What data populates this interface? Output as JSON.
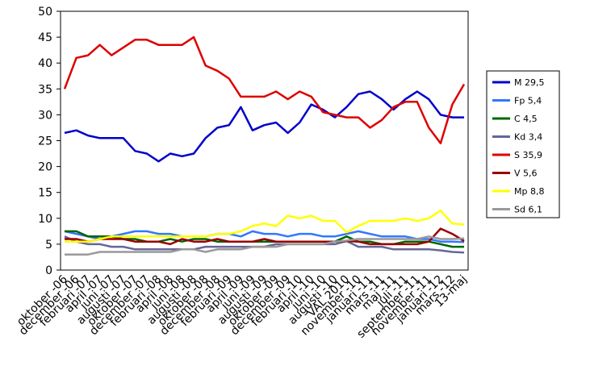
{
  "chart_data": {
    "type": "line",
    "categories": [
      "oktober -06",
      "december -06",
      "februari -07",
      "april -07",
      "juni -07",
      "augusti -07",
      "oktober -07",
      "december -07",
      "februari -08",
      "april -08",
      "juni -08",
      "augusti -08",
      "oktober -08",
      "december -08",
      "februari -09",
      "april -09",
      "juni -09",
      "augusti -09",
      "oktober -09",
      "december -09",
      "februari -10",
      "april -10",
      "juni -10",
      "augusti -10",
      "VAL 2010",
      "november -10",
      "januari -11",
      "mars -11",
      "maj -11",
      "juli -11",
      "september -11",
      "november -11",
      "januari -12",
      "mars -12",
      "13-maj"
    ],
    "series": [
      {
        "name": "M 29,5",
        "color": "#0000cc",
        "values": [
          26.5,
          27,
          26,
          25.5,
          25.5,
          25.5,
          23,
          22.5,
          21,
          22.5,
          22,
          22.5,
          25.5,
          27.5,
          28,
          31.5,
          27,
          28,
          28.5,
          26.5,
          28.5,
          32,
          31,
          29.5,
          31.5,
          34,
          34.5,
          33,
          31,
          33,
          34.5,
          33,
          30,
          29.5,
          29.5
        ]
      },
      {
        "name": "Fp 5,4",
        "color": "#3377ff",
        "values": [
          7.5,
          7,
          6.5,
          6,
          6.5,
          7,
          7.5,
          7.5,
          7,
          7,
          6.5,
          6.5,
          6.5,
          7,
          7,
          6.5,
          7.5,
          7,
          7,
          6.5,
          7,
          7,
          6.5,
          6.5,
          7,
          7.5,
          7,
          6.5,
          6.5,
          6.5,
          6,
          6,
          5.5,
          5.5,
          5.4
        ]
      },
      {
        "name": "C 4,5",
        "color": "#006600",
        "values": [
          7.5,
          7.5,
          6.5,
          6.5,
          6.5,
          6,
          6,
          5.5,
          5.5,
          6,
          5.5,
          6,
          6,
          5.5,
          5.5,
          5.5,
          5.5,
          5.5,
          5.5,
          5.5,
          5.5,
          5.5,
          5.5,
          5.5,
          6.5,
          5.5,
          5.5,
          5,
          5,
          5.5,
          5.5,
          5.5,
          5,
          4.5,
          4.5
        ]
      },
      {
        "name": "Kd 3,4",
        "color": "#666699",
        "values": [
          6.5,
          5.5,
          5,
          5,
          4.5,
          4.5,
          4,
          4,
          4,
          4,
          4,
          4,
          4.5,
          4.5,
          4.5,
          4.5,
          4.5,
          4.5,
          5,
          5,
          5,
          5,
          5,
          5,
          5.6,
          4.5,
          4.5,
          4.5,
          4,
          4,
          4,
          4,
          3.8,
          3.5,
          3.4
        ]
      },
      {
        "name": "S 35,9",
        "color": "#dd0000",
        "values": [
          35,
          41,
          41.5,
          43.5,
          41.5,
          43,
          44.5,
          44.5,
          43.5,
          43.5,
          43.5,
          45,
          39.5,
          38.5,
          37,
          33.5,
          33.5,
          33.5,
          34.5,
          33,
          34.5,
          33.5,
          30.5,
          30,
          29.5,
          29.5,
          27.5,
          29,
          31.5,
          32.5,
          32.5,
          27.5,
          24.5,
          32,
          35.9
        ]
      },
      {
        "name": "V 5,6",
        "color": "#990000",
        "values": [
          6,
          6,
          5.5,
          6,
          6,
          6,
          5.5,
          5.5,
          5.5,
          5,
          6,
          5.5,
          5.5,
          6,
          5.5,
          5.5,
          5.5,
          6,
          5.5,
          5.5,
          5.5,
          5.5,
          5.5,
          5.5,
          5.6,
          5.5,
          5,
          5,
          5,
          5,
          5,
          5.5,
          8,
          7,
          5.6
        ]
      },
      {
        "name": "Mp 8,8",
        "color": "#ffff00",
        "values": [
          5.5,
          5.5,
          5.5,
          6,
          6.5,
          6.5,
          6.5,
          6.5,
          6.5,
          6.5,
          6.5,
          6.5,
          6.5,
          7,
          7,
          7.5,
          8.5,
          9,
          8.5,
          10.5,
          10,
          10.5,
          9.5,
          9.5,
          7.3,
          8.5,
          9.5,
          9.5,
          9.5,
          10,
          9.5,
          10,
          11.5,
          9,
          8.8
        ]
      },
      {
        "name": "Sd 6,1",
        "color": "#999999",
        "values": [
          3,
          3,
          3,
          3.5,
          3.5,
          3.5,
          3.5,
          3.5,
          3.5,
          3.5,
          4,
          4,
          3.5,
          4,
          4,
          4,
          4.5,
          4.5,
          4.5,
          5,
          5,
          5,
          5,
          5.5,
          5.7,
          6,
          6,
          6,
          6,
          6,
          6,
          6.5,
          6,
          6,
          6.1
        ]
      }
    ],
    "ylim": [
      0,
      50
    ],
    "yticks": [
      0,
      5,
      10,
      15,
      20,
      25,
      30,
      35,
      40,
      45,
      50
    ],
    "grid": false
  }
}
